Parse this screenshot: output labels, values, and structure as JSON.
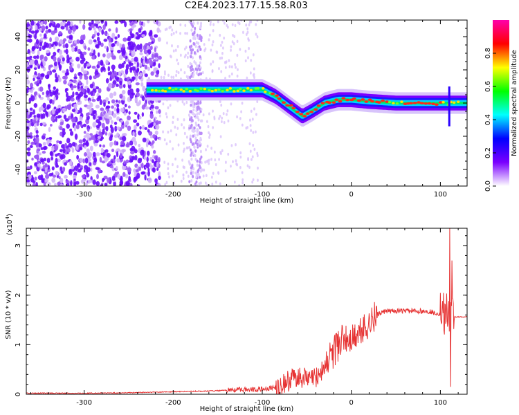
{
  "figure": {
    "title": "C2E4.2023.177.15.58.R03"
  },
  "chart_data": [
    {
      "type": "heatmap",
      "xlabel": "Height of straight line (km)",
      "ylabel": "Frequency (Hz)",
      "xlim": [
        -365,
        130
      ],
      "ylim": [
        -50,
        50
      ],
      "xticks": [
        -300,
        -200,
        -100,
        0,
        100
      ],
      "yticks": [
        -40,
        -20,
        0,
        20,
        40
      ],
      "colorbar": {
        "label": "Normalized spectral amplitude",
        "range": [
          0,
          1
        ],
        "ticks": [
          0.0,
          0.2,
          0.4,
          0.6,
          0.8
        ],
        "colors": [
          "#ffffff",
          "#7a00ff",
          "#0000ff",
          "#00ffff",
          "#00ff00",
          "#ffff00",
          "#ff0000",
          "#ff00aa"
        ]
      },
      "ridge": {
        "x": [
          -230,
          -200,
          -170,
          -140,
          -120,
          -100,
          -85,
          -70,
          -55,
          -45,
          -30,
          -15,
          0,
          20,
          50,
          80,
          110,
          130
        ],
        "freq": [
          8,
          8,
          8,
          8,
          8,
          8,
          4,
          -2,
          -8,
          -5,
          0,
          2,
          2,
          1,
          0,
          0,
          0,
          0
        ]
      },
      "grid": false
    },
    {
      "type": "line",
      "xlabel": "Height of straight line (km)",
      "ylabel": "SNR (10 * v/v)",
      "ymultiplier": "(x10",
      "ymultiplier_exp": "4",
      "xlim": [
        -365,
        130
      ],
      "ylim": [
        0,
        3.35
      ],
      "xticks": [
        -300,
        -200,
        -100,
        0,
        100
      ],
      "yticks": [
        0,
        1,
        2,
        3
      ],
      "color": "#e63232",
      "series": [
        {
          "x": [
            -365,
            -300,
            -250,
            -200,
            -150,
            -120,
            -100,
            -80,
            -70,
            -60,
            -50,
            -40,
            -30,
            -20,
            -10,
            0,
            20,
            30,
            40,
            60,
            80,
            90,
            100,
            106,
            110,
            112,
            115,
            130
          ],
          "y": [
            0.02,
            0.02,
            0.03,
            0.05,
            0.07,
            0.1,
            0.1,
            0.15,
            0.28,
            0.38,
            0.3,
            0.35,
            0.55,
            0.85,
            1.1,
            1.1,
            1.45,
            1.62,
            1.68,
            1.68,
            1.68,
            1.66,
            1.62,
            1.6,
            1.58,
            1.57,
            1.56,
            1.56
          ]
        }
      ],
      "grid": false
    }
  ]
}
